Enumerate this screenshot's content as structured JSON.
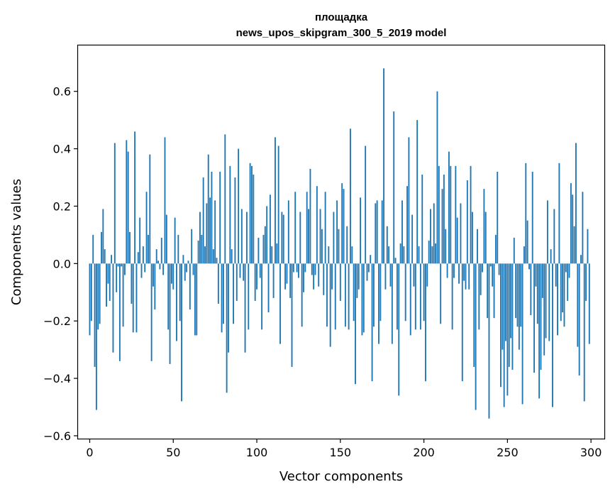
{
  "chart_data": {
    "type": "bar",
    "title_lines": [
      "площадка",
      "news_upos_skipgram_300_5_2019 model"
    ],
    "xlabel": "Vector components",
    "ylabel": "Components values",
    "xlim": [
      -7,
      308
    ],
    "ylim": [
      -0.61,
      0.76
    ],
    "xticks": [
      0,
      50,
      100,
      150,
      200,
      250,
      300
    ],
    "yticks": [
      -0.6,
      -0.4,
      -0.2,
      0.0,
      0.2,
      0.4,
      0.6
    ],
    "ytick_labels": [
      "−0.6",
      "−0.4",
      "−0.2",
      "0.0",
      "0.2",
      "0.4",
      "0.6"
    ],
    "grid": false,
    "bar_color": "#1f77b4",
    "values": [
      -0.25,
      -0.2,
      0.1,
      -0.36,
      -0.51,
      -0.23,
      -0.21,
      0.11,
      0.19,
      0.05,
      -0.15,
      -0.07,
      -0.13,
      0.03,
      -0.31,
      0.42,
      -0.1,
      -0.01,
      -0.34,
      -0.01,
      -0.22,
      -0.04,
      0.43,
      0.39,
      0.11,
      -0.14,
      -0.24,
      0.46,
      -0.24,
      0.04,
      0.16,
      -0.05,
      0.06,
      -0.03,
      0.25,
      0.1,
      0.38,
      -0.34,
      -0.08,
      -0.16,
      0.05,
      0.01,
      -0.02,
      0.09,
      -0.04,
      0.44,
      0.17,
      -0.23,
      -0.35,
      -0.07,
      -0.09,
      0.16,
      -0.27,
      0.1,
      -0.2,
      -0.48,
      0.03,
      -0.06,
      -0.03,
      0.01,
      -0.16,
      0.12,
      -0.04,
      -0.25,
      -0.25,
      0.08,
      0.18,
      0.1,
      0.3,
      0.06,
      0.21,
      0.38,
      0.23,
      0.32,
      0.05,
      0.22,
      0.02,
      -0.14,
      0.32,
      -0.24,
      -0.21,
      0.45,
      -0.45,
      -0.31,
      0.34,
      0.05,
      -0.21,
      0.3,
      -0.13,
      0.4,
      -0.05,
      0.19,
      -0.06,
      -0.31,
      0.18,
      -0.23,
      0.35,
      0.34,
      0.31,
      -0.13,
      -0.09,
      0.09,
      -0.05,
      -0.23,
      0.1,
      0.13,
      0.2,
      -0.17,
      0.24,
      0.06,
      -0.12,
      0.44,
      0.07,
      0.41,
      -0.28,
      0.18,
      0.17,
      -0.09,
      -0.07,
      0.22,
      -0.12,
      -0.36,
      -0.03,
      0.25,
      -0.03,
      -0.05,
      0.18,
      -0.22,
      -0.1,
      -0.03,
      0.25,
      0.19,
      0.33,
      -0.04,
      -0.09,
      -0.04,
      0.27,
      -0.08,
      0.19,
      0.12,
      -0.11,
      0.25,
      -0.22,
      0.06,
      -0.29,
      -0.09,
      0.18,
      -0.23,
      0.22,
      0.12,
      -0.13,
      0.28,
      0.26,
      -0.22,
      0.13,
      -0.23,
      0.47,
      0.06,
      -0.2,
      -0.42,
      -0.12,
      -0.09,
      0.23,
      -0.25,
      -0.24,
      0.41,
      -0.06,
      -0.03,
      0.03,
      -0.41,
      -0.22,
      0.21,
      0.22,
      -0.28,
      -0.2,
      0.22,
      0.68,
      -0.09,
      0.13,
      0.06,
      -0.08,
      -0.28,
      0.53,
      0.02,
      -0.23,
      -0.46,
      0.07,
      0.22,
      0.06,
      -0.2,
      0.27,
      0.44,
      -0.25,
      0.17,
      -0.08,
      -0.23,
      0.5,
      0.06,
      -0.23,
      0.31,
      -0.2,
      -0.41,
      -0.08,
      0.08,
      0.19,
      0.06,
      0.21,
      0.07,
      0.6,
      0.34,
      -0.21,
      0.26,
      0.31,
      0.12,
      -0.05,
      0.39,
      0.34,
      -0.23,
      -0.05,
      0.34,
      0.16,
      -0.07,
      0.21,
      -0.41,
      -0.06,
      -0.09,
      0.29,
      -0.09,
      0.34,
      0.18,
      -0.36,
      -0.51,
      0.12,
      -0.23,
      -0.11,
      -0.03,
      0.26,
      0.18,
      -0.19,
      -0.54,
      -0.01,
      -0.08,
      -0.19,
      0.1,
      0.32,
      -0.04,
      -0.43,
      -0.3,
      -0.5,
      -0.27,
      -0.46,
      -0.36,
      -0.26,
      -0.37,
      0.09,
      -0.19,
      -0.22,
      -0.3,
      -0.22,
      -0.49,
      0.06,
      0.35,
      0.15,
      -0.02,
      -0.18,
      0.32,
      -0.38,
      -0.08,
      -0.21,
      -0.47,
      -0.37,
      -0.12,
      -0.32,
      -0.26,
      0.22,
      -0.27,
      0.05,
      -0.5,
      0.19,
      -0.08,
      -0.25,
      0.35,
      -0.2,
      -0.17,
      -0.22,
      -0.03,
      -0.13,
      -0.05,
      0.28,
      0.24,
      0.13,
      0.42,
      -0.29,
      -0.39,
      0.03,
      0.25,
      -0.48,
      -0.13,
      0.12,
      -0.28
    ]
  }
}
